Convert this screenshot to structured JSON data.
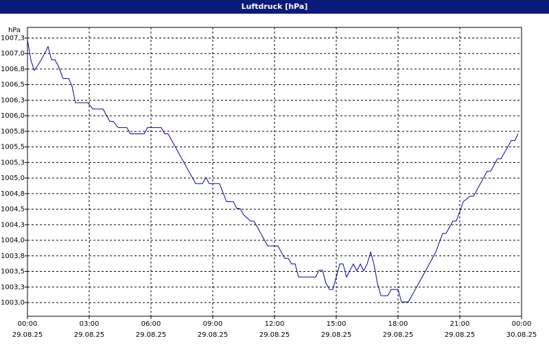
{
  "chart_data": {
    "type": "line",
    "title": "Luftdruck [hPa]",
    "y_unit": "hPa",
    "x": [
      0,
      0.17,
      0.33,
      0.5,
      0.67,
      1,
      1.17,
      1.33,
      1.5,
      1.73,
      2,
      2.17,
      2.33,
      2.93,
      3.17,
      3.67,
      4,
      4.17,
      4.4,
      4.83,
      5,
      5.67,
      5.83,
      6.5,
      6.67,
      6.83,
      8.17,
      8.5,
      8.67,
      8.83,
      9.33,
      9.67,
      10,
      10.17,
      10.33,
      10.5,
      10.83,
      11,
      11.17,
      11.5,
      11.67,
      12.17,
      12.33,
      12.5,
      12.67,
      12.83,
      13,
      13.17,
      14,
      14.17,
      14.33,
      14.5,
      14.67,
      14.83,
      15,
      15.17,
      15.33,
      15.5,
      15.67,
      15.83,
      16,
      16.17,
      16.33,
      16.5,
      16.67,
      16.83,
      17,
      17.17,
      17.5,
      17.67,
      18,
      18.17,
      18.5,
      18.67,
      19.17,
      19.67,
      19.83,
      20.17,
      20.33,
      20.67,
      20.83,
      21.17,
      21.5,
      21.67,
      22.33,
      22.5,
      22.83,
      23,
      23.5,
      23.67,
      23.83
    ],
    "series": [
      {
        "name": "Luftdruck",
        "color": "#0000a0",
        "values": [
          1007.22,
          1006.89,
          1006.73,
          1006.81,
          1006.9,
          1007.11,
          1006.9,
          1006.9,
          1006.8,
          1006.6,
          1006.6,
          1006.47,
          1006.21,
          1006.21,
          1006.11,
          1006.11,
          1005.91,
          1005.91,
          1005.81,
          1005.81,
          1005.71,
          1005.71,
          1005.81,
          1005.81,
          1005.71,
          1005.71,
          1004.91,
          1004.91,
          1005.01,
          1004.91,
          1004.91,
          1004.62,
          1004.62,
          1004.51,
          1004.51,
          1004.41,
          1004.31,
          1004.31,
          1004.21,
          1004.01,
          1003.91,
          1003.91,
          1003.81,
          1003.71,
          1003.71,
          1003.62,
          1003.62,
          1003.41,
          1003.41,
          1003.52,
          1003.52,
          1003.31,
          1003.21,
          1003.21,
          1003.41,
          1003.62,
          1003.62,
          1003.41,
          1003.52,
          1003.62,
          1003.51,
          1003.62,
          1003.51,
          1003.62,
          1003.81,
          1003.62,
          1003.31,
          1003.11,
          1003.11,
          1003.21,
          1003.21,
          1003.01,
          1003.01,
          1003.11,
          1003.41,
          1003.71,
          1003.81,
          1004.11,
          1004.11,
          1004.31,
          1004.31,
          1004.62,
          1004.71,
          1004.71,
          1005.11,
          1005.11,
          1005.31,
          1005.31,
          1005.6,
          1005.6,
          1005.71
        ]
      }
    ],
    "xlim": [
      0,
      24
    ],
    "xticks": [
      {
        "value": 0,
        "label": "00:00",
        "date": "29.08.25"
      },
      {
        "value": 3,
        "label": "03:00",
        "date": "29.08.25"
      },
      {
        "value": 6,
        "label": "06:00",
        "date": "29.08.25"
      },
      {
        "value": 9,
        "label": "09:00",
        "date": "29.08.25"
      },
      {
        "value": 12,
        "label": "12:00",
        "date": "29.08.25"
      },
      {
        "value": 15,
        "label": "15:00",
        "date": "29.08.25"
      },
      {
        "value": 18,
        "label": "18:00",
        "date": "29.08.25"
      },
      {
        "value": 21,
        "label": "21:00",
        "date": "29.08.25"
      },
      {
        "value": 24,
        "label": "00:00",
        "date": "30.08.25"
      }
    ],
    "ylim": [
      1002.78,
      1007.42
    ],
    "yticks": [
      {
        "value": 1003,
        "label": "1003,0"
      },
      {
        "value": 1003.25,
        "label": "1003,3"
      },
      {
        "value": 1003.5,
        "label": "1003,5"
      },
      {
        "value": 1003.75,
        "label": "1003,8"
      },
      {
        "value": 1004,
        "label": "1004,0"
      },
      {
        "value": 1004.25,
        "label": "1004,3"
      },
      {
        "value": 1004.5,
        "label": "1004,5"
      },
      {
        "value": 1004.75,
        "label": "1004,8"
      },
      {
        "value": 1005,
        "label": "1005,0"
      },
      {
        "value": 1005.25,
        "label": "1005,3"
      },
      {
        "value": 1005.5,
        "label": "1005,5"
      },
      {
        "value": 1005.75,
        "label": "1005,8"
      },
      {
        "value": 1006,
        "label": "1006,0"
      },
      {
        "value": 1006.25,
        "label": "1006,3"
      },
      {
        "value": 1006.5,
        "label": "1006,5"
      },
      {
        "value": 1006.75,
        "label": "1006,8"
      },
      {
        "value": 1007,
        "label": "1007,0"
      },
      {
        "value": 1007.25,
        "label": "1007,3"
      }
    ],
    "grid": true
  }
}
